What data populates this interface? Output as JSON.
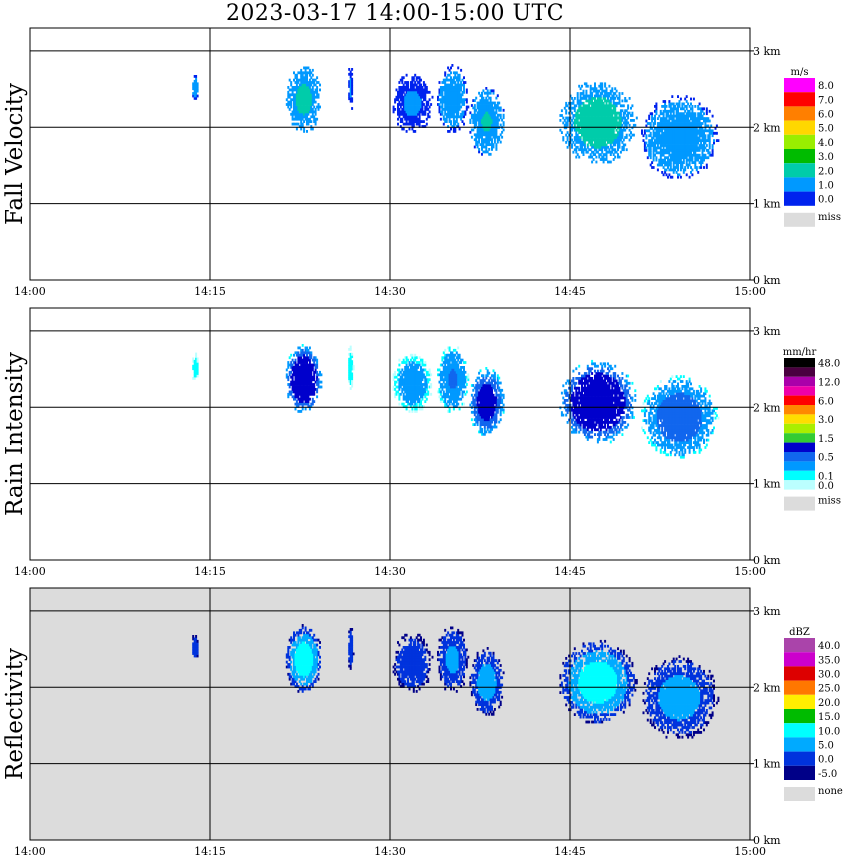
{
  "header": {
    "title": "2023-03-17  14:00-15:00 UTC"
  },
  "x_ticks": [
    "14:00",
    "14:15",
    "14:30",
    "14:45",
    "15:00"
  ],
  "y_ticks": [
    "3 km",
    "2 km",
    "1 km",
    "0 km"
  ],
  "colors": {
    "grey_background": "#dcdcdc",
    "missing": "#dcdcdc"
  },
  "panels": [
    {
      "id": "fall-velocity",
      "ylabel": "Fall Velocity",
      "background": "white",
      "legend": {
        "unit": "m/s",
        "bins": [
          {
            "label": "8.0",
            "color": "#ff00ff"
          },
          {
            "label": "7.0",
            "color": "#ff0000"
          },
          {
            "label": "6.0",
            "color": "#ff7f00"
          },
          {
            "label": "5.0",
            "color": "#ffd700"
          },
          {
            "label": "4.0",
            "color": "#99ee00"
          },
          {
            "label": "3.0",
            "color": "#00bb00"
          },
          {
            "label": "2.0",
            "color": "#00ccaa"
          },
          {
            "label": "1.0",
            "color": "#0099ff"
          },
          {
            "label": "0.0",
            "color": "#0022ee"
          }
        ],
        "missing_label": "miss"
      }
    },
    {
      "id": "rain-intensity",
      "ylabel": "Rain Intensity",
      "background": "white",
      "legend": {
        "unit": "mm/hr",
        "bins": [
          {
            "label": "48.0",
            "color": "#000000"
          },
          {
            "label": "",
            "color": "#4a0040"
          },
          {
            "label": "12.0",
            "color": "#aa00aa"
          },
          {
            "label": "",
            "color": "#ee00aa"
          },
          {
            "label": "6.0",
            "color": "#ff0000"
          },
          {
            "label": "",
            "color": "#ff8800"
          },
          {
            "label": "3.0",
            "color": "#ffdd00"
          },
          {
            "label": "",
            "color": "#aaee00"
          },
          {
            "label": "1.5",
            "color": "#33cc33"
          },
          {
            "label": "",
            "color": "#0000cc"
          },
          {
            "label": "0.5",
            "color": "#1166ee"
          },
          {
            "label": "",
            "color": "#0099ff"
          },
          {
            "label": "0.1",
            "color": "#00ffff"
          },
          {
            "label": "0.0",
            "color": "#bbffff"
          }
        ],
        "missing_label": "miss"
      }
    },
    {
      "id": "reflectivity",
      "ylabel": "Reflectivity",
      "background": "grey",
      "legend": {
        "unit": "dBZ",
        "bins": [
          {
            "label": "40.0",
            "color": "#aa44aa"
          },
          {
            "label": "35.0",
            "color": "#cc00cc"
          },
          {
            "label": "30.0",
            "color": "#dd0000"
          },
          {
            "label": "25.0",
            "color": "#ff7700"
          },
          {
            "label": "20.0",
            "color": "#ffee00"
          },
          {
            "label": "15.0",
            "color": "#00bb00"
          },
          {
            "label": "10.0",
            "color": "#00ffff"
          },
          {
            "label": "5.0",
            "color": "#00aaff"
          },
          {
            "label": "0.0",
            "color": "#0033dd"
          },
          {
            "label": "-5.0",
            "color": "#000088"
          }
        ],
        "missing_label": "none"
      }
    }
  ],
  "chart_data": {
    "type": "heatmap",
    "title": "2023-03-17  14:00-15:00 UTC",
    "x_range": [
      "14:00",
      "15:00"
    ],
    "y_range_km": [
      0,
      3.3
    ],
    "grid": true,
    "panels": [
      "Fall Velocity",
      "Rain Intensity",
      "Reflectivity"
    ],
    "echo_cells": [
      {
        "t_min": 13.4,
        "t_max": 14.0,
        "z_min_km": 2.3,
        "z_max_km": 2.7,
        "fv": 1.0,
        "ri": 0.1,
        "dbz": 5
      },
      {
        "t_min": 21.2,
        "t_max": 24.3,
        "z_min_km": 1.9,
        "z_max_km": 2.8,
        "fv": 1.6,
        "ri": 0.8,
        "dbz": 12
      },
      {
        "t_min": 26.4,
        "t_max": 26.9,
        "z_min_km": 2.2,
        "z_max_km": 2.8,
        "fv": 0.8,
        "ri": 0.1,
        "dbz": 5
      },
      {
        "t_min": 30.1,
        "t_max": 33.5,
        "z_min_km": 1.9,
        "z_max_km": 2.7,
        "fv": 0.8,
        "ri": 0.2,
        "dbz": 6
      },
      {
        "t_min": 33.8,
        "t_max": 36.5,
        "z_min_km": 1.9,
        "z_max_km": 2.8,
        "fv": 1.2,
        "ri": 0.3,
        "dbz": 7
      },
      {
        "t_min": 36.5,
        "t_max": 39.5,
        "z_min_km": 1.6,
        "z_max_km": 2.5,
        "fv": 1.5,
        "ri": 0.6,
        "dbz": 8
      },
      {
        "t_min": 44.0,
        "t_max": 50.5,
        "z_min_km": 1.5,
        "z_max_km": 2.6,
        "fv": 1.8,
        "ri": 0.8,
        "dbz": 12
      },
      {
        "t_min": 50.8,
        "t_max": 57.3,
        "z_min_km": 1.3,
        "z_max_km": 2.4,
        "fv": 1.3,
        "ri": 0.4,
        "dbz": 8
      }
    ]
  }
}
